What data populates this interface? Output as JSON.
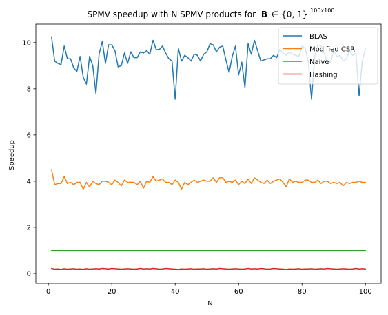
{
  "chart_data": {
    "type": "line",
    "title": "SPMV speedup with N SPMV products for",
    "title_math_symbol": "B",
    "title_math_relation": "∈ {0, 1}",
    "title_superscript": "100x100",
    "xlabel": "N",
    "ylabel": "Speedup",
    "xlim": [
      -3.95,
      104.95
    ],
    "ylim": [
      -0.42,
      10.8
    ],
    "xticks": [
      0,
      20,
      40,
      60,
      80,
      100
    ],
    "yticks": [
      0,
      2,
      4,
      6,
      8,
      10
    ],
    "grid": false,
    "legend_position": "upper right",
    "x": [
      1,
      2,
      3,
      4,
      5,
      6,
      7,
      8,
      9,
      10,
      11,
      12,
      13,
      14,
      15,
      16,
      17,
      18,
      19,
      20,
      21,
      22,
      23,
      24,
      25,
      26,
      27,
      28,
      29,
      30,
      31,
      32,
      33,
      34,
      35,
      36,
      37,
      38,
      39,
      40,
      41,
      42,
      43,
      44,
      45,
      46,
      47,
      48,
      49,
      50,
      51,
      52,
      53,
      54,
      55,
      56,
      57,
      58,
      59,
      60,
      61,
      62,
      63,
      64,
      65,
      66,
      67,
      68,
      69,
      70,
      71,
      72,
      73,
      74,
      75,
      76,
      77,
      78,
      79,
      80,
      81,
      82,
      83,
      84,
      85,
      86,
      87,
      88,
      89,
      90,
      91,
      92,
      93,
      94,
      95,
      96,
      97,
      98,
      99,
      100
    ],
    "series": [
      {
        "name": "BLAS",
        "color": "#1f77b4",
        "values": [
          10.25,
          9.2,
          9.1,
          9.05,
          9.85,
          9.3,
          9.3,
          8.9,
          8.75,
          9.4,
          8.5,
          8.2,
          9.4,
          9.0,
          7.8,
          9.5,
          10.05,
          9.1,
          9.9,
          9.9,
          9.65,
          8.95,
          9.0,
          9.55,
          9.1,
          9.6,
          9.35,
          9.35,
          9.6,
          9.55,
          9.65,
          9.5,
          10.1,
          9.7,
          9.7,
          9.85,
          9.55,
          9.3,
          9.2,
          7.55,
          9.75,
          9.2,
          9.45,
          9.35,
          9.2,
          9.5,
          9.45,
          9.2,
          9.5,
          9.6,
          9.95,
          9.9,
          9.6,
          9.8,
          9.85,
          9.25,
          8.7,
          9.4,
          9.85,
          8.6,
          9.15,
          8.05,
          9.95,
          9.5,
          10.1,
          9.65,
          9.2,
          9.25,
          9.3,
          9.3,
          9.45,
          9.35,
          9.7,
          9.55,
          9.45,
          9.6,
          9.5,
          9.45,
          9.4,
          9.85,
          9.75,
          9.15,
          7.55,
          9.4,
          9.9,
          9.85,
          9.55,
          9.15,
          9.15,
          9.65,
          9.4,
          9.45,
          9.2,
          9.3,
          9.65,
          9.45,
          9.55,
          7.7,
          9.2,
          9.75
        ]
      },
      {
        "name": "Modified CSR",
        "color": "#ff7f0e",
        "values": [
          4.5,
          3.85,
          3.9,
          3.9,
          4.2,
          3.9,
          3.95,
          3.85,
          3.95,
          3.95,
          3.65,
          3.95,
          3.75,
          4.0,
          3.9,
          3.85,
          4.0,
          4.0,
          3.95,
          3.85,
          4.05,
          3.95,
          3.8,
          4.05,
          3.95,
          3.95,
          3.95,
          3.85,
          4.0,
          3.7,
          4.0,
          3.95,
          4.2,
          4.0,
          4.05,
          4.1,
          3.95,
          3.95,
          3.85,
          4.05,
          3.95,
          3.65,
          3.95,
          3.85,
          3.95,
          4.05,
          3.95,
          4.0,
          4.05,
          4.0,
          4.0,
          4.15,
          3.95,
          4.15,
          4.15,
          3.95,
          4.0,
          3.95,
          4.05,
          3.85,
          4.0,
          3.9,
          4.1,
          3.9,
          4.15,
          4.05,
          3.95,
          3.9,
          4.05,
          3.9,
          4.0,
          4.05,
          4.1,
          3.95,
          3.75,
          4.1,
          3.95,
          4.0,
          3.95,
          3.95,
          4.05,
          4.05,
          3.95,
          3.95,
          4.05,
          3.9,
          4.0,
          4.0,
          3.9,
          3.95,
          3.9,
          3.95,
          3.8,
          3.95,
          3.9,
          3.95,
          3.95,
          4.0,
          3.95,
          3.95
        ]
      },
      {
        "name": "Naive",
        "color": "#2ca02c",
        "values": [
          1,
          1,
          1,
          1,
          1,
          1,
          1,
          1,
          1,
          1,
          1,
          1,
          1,
          1,
          1,
          1,
          1,
          1,
          1,
          1,
          1,
          1,
          1,
          1,
          1,
          1,
          1,
          1,
          1,
          1,
          1,
          1,
          1,
          1,
          1,
          1,
          1,
          1,
          1,
          1,
          1,
          1,
          1,
          1,
          1,
          1,
          1,
          1,
          1,
          1,
          1,
          1,
          1,
          1,
          1,
          1,
          1,
          1,
          1,
          1,
          1,
          1,
          1,
          1,
          1,
          1,
          1,
          1,
          1,
          1,
          1,
          1,
          1,
          1,
          1,
          1,
          1,
          1,
          1,
          1,
          1,
          1,
          1,
          1,
          1,
          1,
          1,
          1,
          1,
          1,
          1,
          1,
          1,
          1,
          1,
          1,
          1,
          1,
          1,
          1
        ]
      },
      {
        "name": "Hashing",
        "color": "#d62728",
        "values": [
          0.22,
          0.19,
          0.2,
          0.18,
          0.21,
          0.19,
          0.2,
          0.21,
          0.19,
          0.2,
          0.18,
          0.21,
          0.19,
          0.2,
          0.21,
          0.2,
          0.22,
          0.21,
          0.2,
          0.22,
          0.21,
          0.2,
          0.19,
          0.2,
          0.21,
          0.2,
          0.19,
          0.2,
          0.22,
          0.2,
          0.21,
          0.2,
          0.22,
          0.21,
          0.19,
          0.2,
          0.22,
          0.21,
          0.2,
          0.19,
          0.18,
          0.2,
          0.19,
          0.2,
          0.21,
          0.19,
          0.2,
          0.2,
          0.21,
          0.19,
          0.2,
          0.21,
          0.2,
          0.22,
          0.21,
          0.2,
          0.19,
          0.2,
          0.21,
          0.2,
          0.19,
          0.2,
          0.22,
          0.2,
          0.21,
          0.2,
          0.22,
          0.21,
          0.19,
          0.2,
          0.22,
          0.21,
          0.2,
          0.19,
          0.18,
          0.2,
          0.19,
          0.2,
          0.21,
          0.19,
          0.2,
          0.2,
          0.21,
          0.19,
          0.2,
          0.21,
          0.2,
          0.22,
          0.21,
          0.2,
          0.19,
          0.2,
          0.21,
          0.2,
          0.19,
          0.2,
          0.22,
          0.2,
          0.21,
          0.2
        ]
      }
    ]
  }
}
